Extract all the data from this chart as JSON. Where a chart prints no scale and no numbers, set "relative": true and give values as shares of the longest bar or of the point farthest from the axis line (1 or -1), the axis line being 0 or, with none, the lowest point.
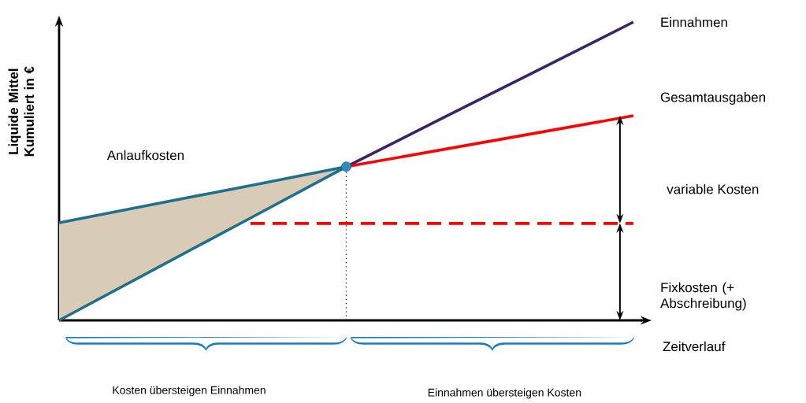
{
  "chart_data": {
    "type": "line",
    "relative": true,
    "categories": [
      null,
      null,
      null,
      null,
      null,
      null,
      null
    ],
    "xlabel": "Zeitverlauf",
    "ylabel": "Liquide Mittel Kumuliert in €",
    "series": [
      {
        "name": "Einnahmen",
        "color": "#3b2466",
        "values": [
          null,
          null,
          null,
          0.515,
          0.677,
          0.838,
          1
        ]
      },
      {
        "name": "Gesamtausgaben",
        "color": "#ff0000",
        "values": [
          null,
          null,
          null,
          0.515,
          0.572,
          0.629,
          0.686
        ]
      },
      {
        "name": "Anlaufkosten",
        "color": "#1f6f8f",
        "values": [
          0.327,
          0.39,
          0.452,
          0.515,
          null,
          null,
          null
        ]
      },
      {
        "color": "#1f6f8f",
        "values": [
          0,
          0.172,
          0.343,
          0.515,
          null,
          null,
          null
        ]
      },
      {
        "color": "#ff0000",
        "line_style": "dashed",
        "values": [
          null,
          null,
          0.325,
          0.325,
          0.325,
          0.325,
          0.325
        ]
      }
    ],
    "annotations": [
      "variable Kosten",
      "Fixkosten (+ Abschreibung)",
      "Kosten übersteigen Einnahmen",
      "Einnahmen übersteigen Kosten"
    ]
  }
}
